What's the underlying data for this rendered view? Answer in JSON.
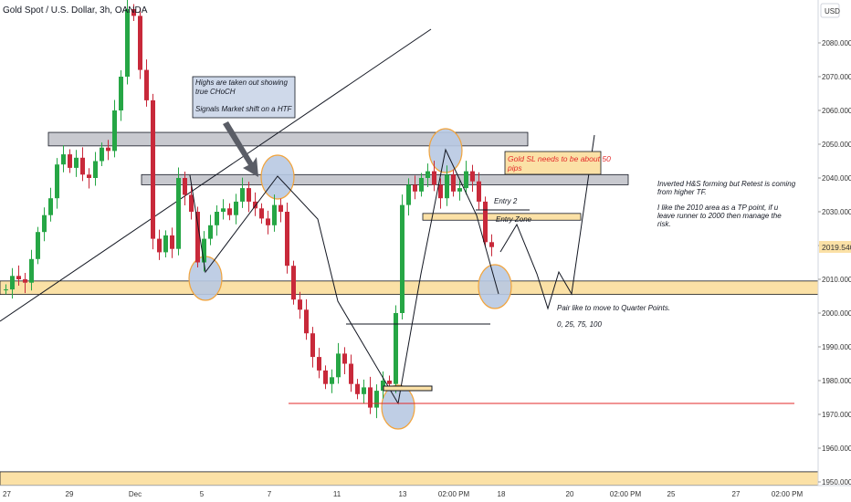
{
  "header": {
    "title": "Gold Spot / U.S. Dollar, 3h, OANDA",
    "currency": "USD"
  },
  "price_axis": {
    "ticks": [
      "2080.000",
      "2070.000",
      "2060.000",
      "2050.000",
      "2040.000",
      "2030.000",
      "2020.000",
      "2010.000",
      "2000.000",
      "1990.000",
      "1980.000",
      "1970.000",
      "1960.000",
      "1950.000"
    ],
    "current_price": "2019.540"
  },
  "time_axis": {
    "ticks": [
      "27",
      "29",
      "Dec",
      "5",
      "7",
      "11",
      "13",
      "02:00 PM",
      "18",
      "20",
      "02:00 PM",
      "25",
      "27",
      "02:00 PM"
    ]
  },
  "annotations": {
    "choch_note_1": "Highs are taken out showing",
    "choch_note_2": "true CHoCH",
    "choch_note_3": "Signals Market shift on a HTF",
    "sl_note_1": "Gold SL needs to be about 50",
    "sl_note_2": "pips",
    "entry2": "Entry 2",
    "entry_zone": "Entry Zone",
    "hs_note_1": "Inverted H&S forming but Retest is coming",
    "hs_note_2": "from higher TF.",
    "tp_note_1": "I like the 2010 area as a TP point, if u",
    "tp_note_2": "leave runner to 2000 then manage the",
    "tp_note_3": "risk.",
    "quarter_note": "Pair like to move to Quarter Points.",
    "quarter_values": "0, 25, 75, 100"
  },
  "colors": {
    "up": "#26a645",
    "down": "#c8293a",
    "zone_yellow": "#fbe1a6",
    "zone_gray": "#c8c9cf",
    "circle_fill": "#b8c9e2",
    "circle_stroke": "#f2a33a",
    "red_line": "#e32a2a"
  },
  "chart_data": {
    "type": "candlestick",
    "title": "Gold Spot / U.S. Dollar, 3h, OANDA",
    "ylim": [
      1948,
      2092
    ],
    "x_ticks": [
      "27",
      "29",
      "Dec",
      "5",
      "7",
      "11",
      "13",
      "02:00 PM",
      "18",
      "20",
      "02:00 PM",
      "25",
      "27",
      "02:00 PM"
    ],
    "y_ticks": [
      2080,
      2070,
      2060,
      2050,
      2040,
      2030,
      2020,
      2010,
      2000,
      1990,
      1980,
      1970,
      1960,
      1950
    ],
    "current_price": 2019.54,
    "key_closes": [
      2007,
      2011,
      2010,
      2009,
      2016,
      2024,
      2029,
      2034,
      2044,
      2047,
      2043,
      2046,
      2041,
      2040,
      2045,
      2049,
      2048,
      2060,
      2070,
      2090,
      2088,
      2072,
      2063,
      2022,
      2018,
      2023,
      2019,
      2040,
      2035,
      2030,
      2015,
      2022,
      2026,
      2030,
      2031,
      2029,
      2033,
      2037,
      2033,
      2031,
      2028,
      2026,
      2032,
      2030,
      2014,
      2004,
      2001,
      1994,
      1987,
      1983,
      1979,
      1981,
      1988,
      1985,
      1979,
      1976,
      1978,
      1972,
      1977,
      1980,
      1979,
      2000,
      2032,
      2038,
      2036,
      2040,
      2042,
      2038,
      2034,
      2041,
      2036,
      2037,
      2042,
      2039,
      2033,
      2021,
      2019.54
    ],
    "zones": [
      {
        "type": "resistance",
        "from": 2049.5,
        "to": 2053.5
      },
      {
        "type": "resistance",
        "from": 2038,
        "to": 2041
      },
      {
        "type": "entry_zone",
        "from": 2027.5,
        "to": 2029.5
      },
      {
        "type": "support",
        "from": 2005.5,
        "to": 2009.5
      },
      {
        "type": "support",
        "from": 1949,
        "to": 1953
      }
    ],
    "levels": [
      {
        "label": "red_line",
        "price": 1973.5
      },
      {
        "label": "Entry 2",
        "price": 2031.5
      }
    ]
  }
}
